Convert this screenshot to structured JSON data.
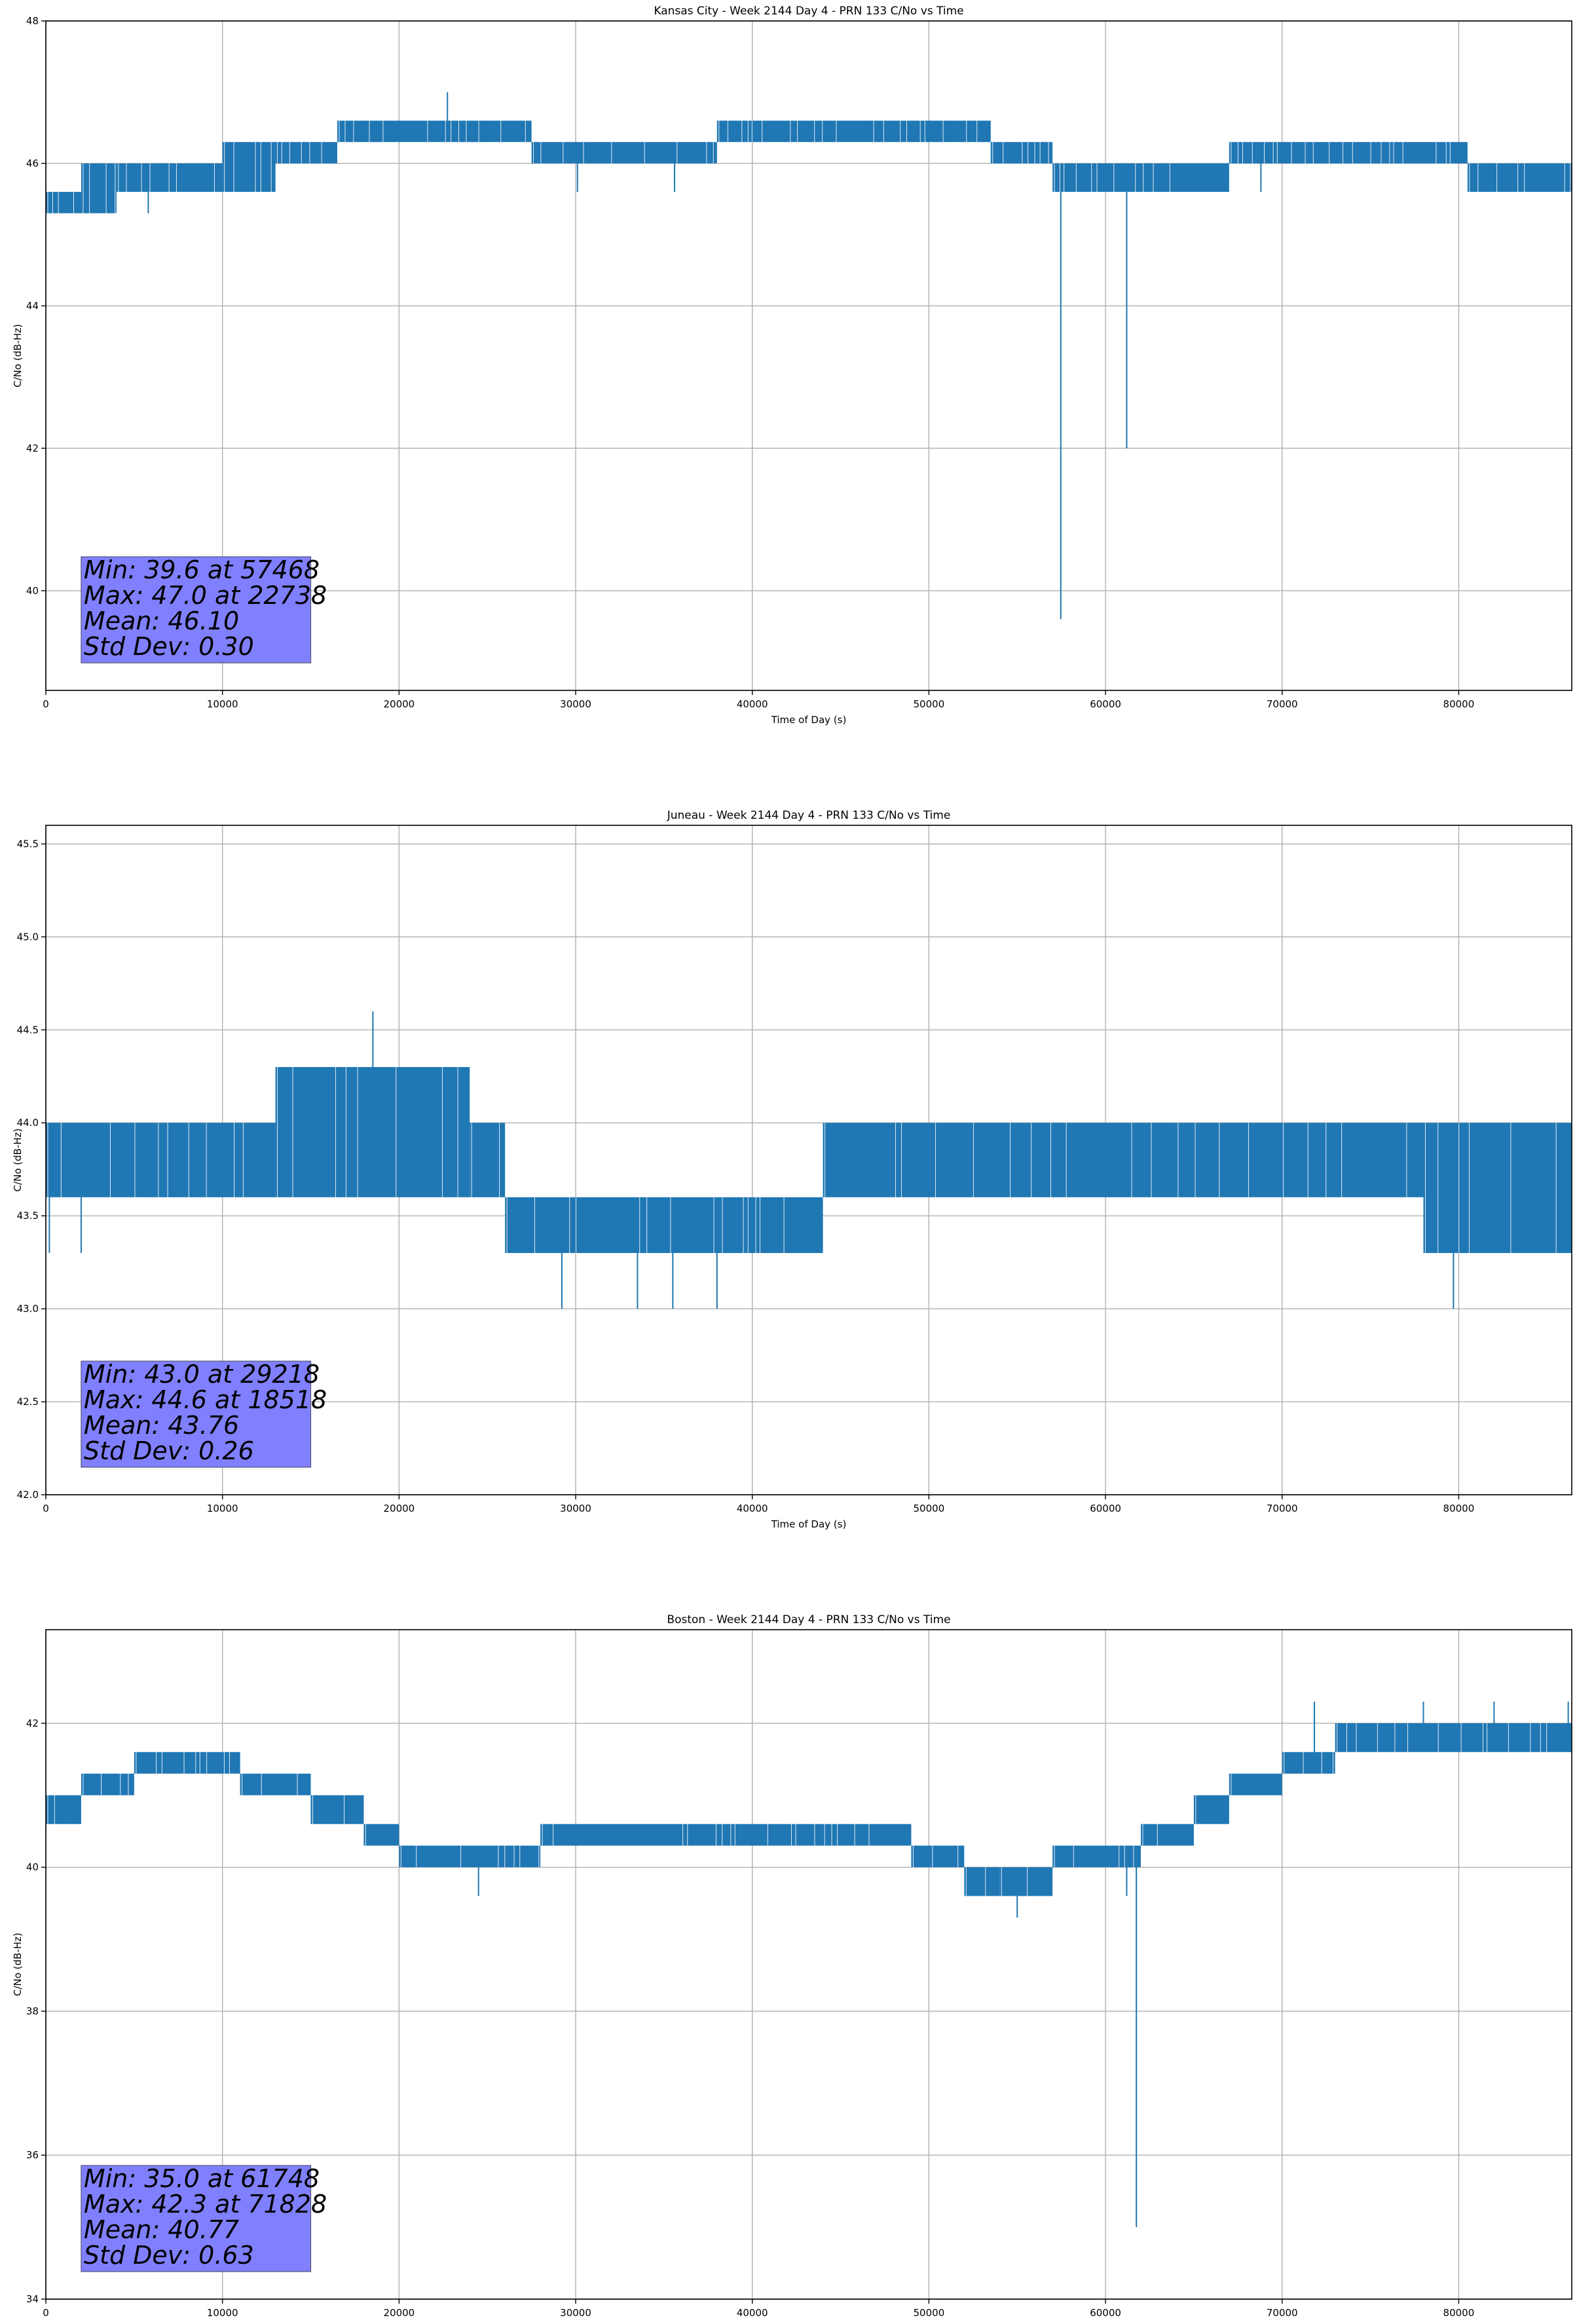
{
  "chart_data": [
    {
      "type": "line",
      "title": "Kansas City - Week 2144 Day 4 - PRN 133 C/No vs Time",
      "xlabel": "Time of Day (s)",
      "ylabel": "C/No (dB-Hz)",
      "xlim": [
        0,
        86400
      ],
      "ylim": [
        38.6,
        48
      ],
      "xticks": [
        0,
        10000,
        20000,
        30000,
        40000,
        50000,
        60000,
        70000,
        80000
      ],
      "yticks": [
        40,
        42,
        44,
        46,
        48
      ],
      "grid": true,
      "color": "#1f77b4",
      "stats": [
        "Min: 39.6 at 57468",
        "Max: 47.0 at 22738",
        "Mean: 46.10",
        "Std Dev: 0.30"
      ],
      "series": [
        {
          "bands": [
            {
              "x": [
                0,
                2000
              ],
              "low": 45.3,
              "high": 45.6
            },
            {
              "x": [
                2000,
                4000
              ],
              "low": 45.3,
              "high": 46.0
            },
            {
              "x": [
                4000,
                10000
              ],
              "low": 45.6,
              "high": 46.0
            },
            {
              "x": [
                10000,
                13000
              ],
              "low": 45.6,
              "high": 46.3
            },
            {
              "x": [
                13000,
                16500
              ],
              "low": 46.0,
              "high": 46.3
            },
            {
              "x": [
                16500,
                27500
              ],
              "low": 46.3,
              "high": 46.6
            },
            {
              "x": [
                27500,
                38000
              ],
              "low": 46.0,
              "high": 46.3
            },
            {
              "x": [
                38000,
                53500
              ],
              "low": 46.3,
              "high": 46.6
            },
            {
              "x": [
                53500,
                57000
              ],
              "low": 46.0,
              "high": 46.3
            },
            {
              "x": [
                57000,
                67000
              ],
              "low": 45.6,
              "high": 46.0
            },
            {
              "x": [
                67000,
                80500
              ],
              "low": 46.0,
              "high": 46.3
            },
            {
              "x": [
                80500,
                86400
              ],
              "low": 45.6,
              "high": 46.0
            }
          ],
          "spikes": [
            {
              "x": 22738,
              "from": 46.6,
              "to": 47.0
            },
            {
              "x": 57468,
              "from": 45.6,
              "to": 39.6
            },
            {
              "x": 61200,
              "from": 45.6,
              "to": 42.0
            },
            {
              "x": 5800,
              "from": 45.6,
              "to": 45.3
            },
            {
              "x": 30100,
              "from": 46.0,
              "to": 45.6
            },
            {
              "x": 35600,
              "from": 46.0,
              "to": 45.6
            },
            {
              "x": 68800,
              "from": 46.0,
              "to": 45.6
            }
          ]
        }
      ]
    },
    {
      "type": "line",
      "title": "Juneau - Week 2144 Day 4 - PRN 133 C/No vs Time",
      "xlabel": "Time of Day (s)",
      "ylabel": "C/No (dB-Hz)",
      "xlim": [
        0,
        86400
      ],
      "ylim": [
        42.0,
        45.6
      ],
      "xticks": [
        0,
        10000,
        20000,
        30000,
        40000,
        50000,
        60000,
        70000,
        80000
      ],
      "yticks": [
        42.0,
        42.5,
        43.0,
        43.5,
        44.0,
        44.5,
        45.0,
        45.5
      ],
      "grid": true,
      "color": "#1f77b4",
      "stats": [
        "Min: 43.0 at 29218",
        "Max: 44.6 at 18518",
        "Mean: 43.76",
        "Std Dev: 0.26"
      ],
      "series": [
        {
          "bands": [
            {
              "x": [
                0,
                13000
              ],
              "low": 43.6,
              "high": 44.0
            },
            {
              "x": [
                13000,
                24000
              ],
              "low": 43.6,
              "high": 44.3
            },
            {
              "x": [
                24000,
                26000
              ],
              "low": 43.6,
              "high": 44.0
            },
            {
              "x": [
                26000,
                44000
              ],
              "low": 43.3,
              "high": 43.6
            },
            {
              "x": [
                44000,
                64000
              ],
              "low": 43.6,
              "high": 44.0
            },
            {
              "x": [
                64000,
                78000
              ],
              "low": 43.6,
              "high": 44.0
            },
            {
              "x": [
                78000,
                86400
              ],
              "low": 43.3,
              "high": 44.0
            }
          ],
          "spikes": [
            {
              "x": 18518,
              "from": 44.3,
              "to": 44.6
            },
            {
              "x": 29218,
              "from": 43.3,
              "to": 43.0
            },
            {
              "x": 33500,
              "from": 43.3,
              "to": 43.0
            },
            {
              "x": 35500,
              "from": 43.3,
              "to": 43.0
            },
            {
              "x": 38000,
              "from": 43.3,
              "to": 43.0
            },
            {
              "x": 79700,
              "from": 43.3,
              "to": 43.0
            },
            {
              "x": 2000,
              "from": 43.6,
              "to": 43.3
            },
            {
              "x": 200,
              "from": 43.6,
              "to": 43.3
            }
          ]
        }
      ]
    },
    {
      "type": "line",
      "title": "Boston - Week 2144 Day 4 - PRN 133 C/No vs Time",
      "xlabel": "Time of Day (s)",
      "ylabel": "C/No (dB-Hz)",
      "xlim": [
        0,
        86400
      ],
      "ylim": [
        34,
        43.3
      ],
      "xticks": [
        0,
        10000,
        20000,
        30000,
        40000,
        50000,
        60000,
        70000,
        80000
      ],
      "yticks": [
        34,
        36,
        38,
        40,
        42
      ],
      "grid": true,
      "color": "#1f77b4",
      "stats": [
        "Min: 35.0 at 61748",
        "Max: 42.3 at 71828",
        "Mean: 40.77",
        "Std Dev: 0.63"
      ],
      "series": [
        {
          "bands": [
            {
              "x": [
                0,
                2000
              ],
              "low": 40.6,
              "high": 41.0
            },
            {
              "x": [
                2000,
                5000
              ],
              "low": 41.0,
              "high": 41.3
            },
            {
              "x": [
                5000,
                11000
              ],
              "low": 41.3,
              "high": 41.6
            },
            {
              "x": [
                11000,
                15000
              ],
              "low": 41.0,
              "high": 41.3
            },
            {
              "x": [
                15000,
                18000
              ],
              "low": 40.6,
              "high": 41.0
            },
            {
              "x": [
                18000,
                20000
              ],
              "low": 40.3,
              "high": 40.6
            },
            {
              "x": [
                20000,
                28000
              ],
              "low": 40.0,
              "high": 40.3
            },
            {
              "x": [
                28000,
                49000
              ],
              "low": 40.3,
              "high": 40.6
            },
            {
              "x": [
                49000,
                52000
              ],
              "low": 40.0,
              "high": 40.3
            },
            {
              "x": [
                52000,
                54000
              ],
              "low": 39.6,
              "high": 40.0
            },
            {
              "x": [
                54000,
                57000
              ],
              "low": 39.6,
              "high": 40.0
            },
            {
              "x": [
                57000,
                62000
              ],
              "low": 40.0,
              "high": 40.3
            },
            {
              "x": [
                62000,
                65000
              ],
              "low": 40.3,
              "high": 40.6
            },
            {
              "x": [
                65000,
                67000
              ],
              "low": 40.6,
              "high": 41.0
            },
            {
              "x": [
                67000,
                70000
              ],
              "low": 41.0,
              "high": 41.3
            },
            {
              "x": [
                70000,
                73000
              ],
              "low": 41.3,
              "high": 41.6
            },
            {
              "x": [
                73000,
                77000
              ],
              "low": 41.6,
              "high": 42.0
            },
            {
              "x": [
                77000,
                86400
              ],
              "low": 41.6,
              "high": 42.0
            }
          ],
          "spikes": [
            {
              "x": 61748,
              "from": 40.0,
              "to": 35.0
            },
            {
              "x": 71828,
              "from": 41.6,
              "to": 42.3
            },
            {
              "x": 24500,
              "from": 40.0,
              "to": 39.6
            },
            {
              "x": 55000,
              "from": 39.6,
              "to": 39.3
            },
            {
              "x": 61200,
              "from": 40.0,
              "to": 39.6
            },
            {
              "x": 78000,
              "from": 42.0,
              "to": 42.3
            },
            {
              "x": 82000,
              "from": 42.0,
              "to": 42.3
            },
            {
              "x": 86200,
              "from": 42.0,
              "to": 42.3
            }
          ]
        }
      ]
    }
  ]
}
